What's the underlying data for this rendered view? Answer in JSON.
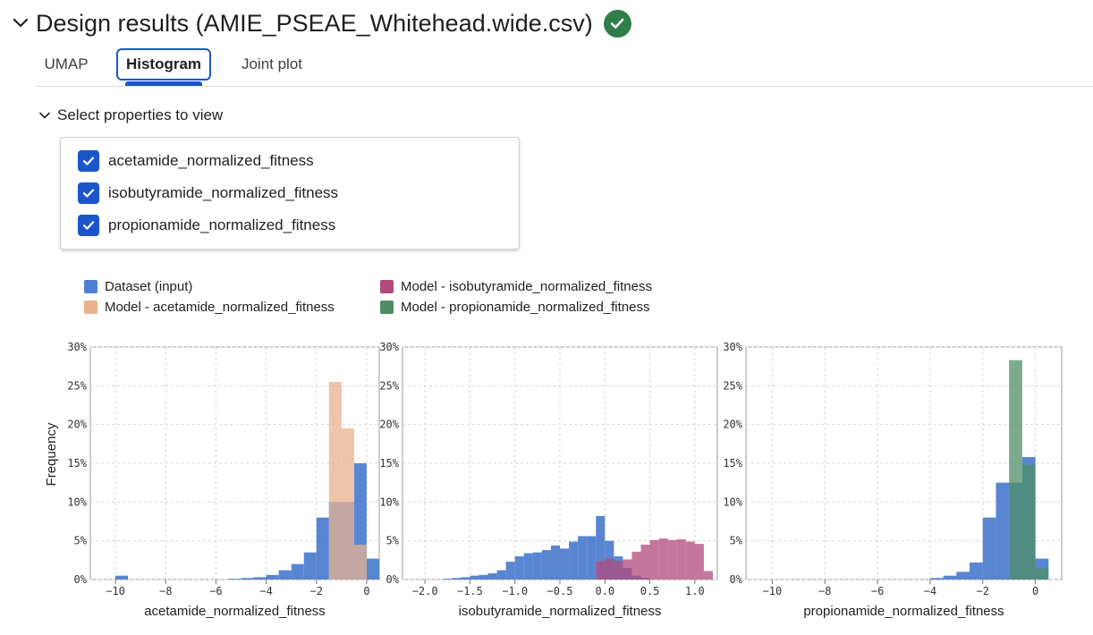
{
  "header": {
    "title": "Design results (AMIE_PSEAE_Whitehead.wide.csv)"
  },
  "tabs": [
    {
      "label": "UMAP"
    },
    {
      "label": "Histogram"
    },
    {
      "label": "Joint plot"
    }
  ],
  "properties": {
    "heading": "Select properties to view",
    "items": [
      {
        "label": "acetamide_normalized_fitness",
        "checked": true
      },
      {
        "label": "isobutyramide_normalized_fitness",
        "checked": true
      },
      {
        "label": "propionamide_normalized_fitness",
        "checked": true
      }
    ]
  },
  "legend": [
    {
      "label": "Dataset (input)",
      "color": "#4f7fd0"
    },
    {
      "label": "Model - acetamide_normalized_fitness",
      "color": "#e8b28f"
    },
    {
      "label": "Model - isobutyramide_normalized_fitness",
      "color": "#b04a7a"
    },
    {
      "label": "Model - propionamide_normalized_fitness",
      "color": "#4f8d66"
    }
  ],
  "chart_data": [
    {
      "type": "bar",
      "xlabel": "acetamide_normalized_fitness",
      "ylabel": "Frequency",
      "xlim": [
        -11,
        0.5
      ],
      "ylim": [
        0,
        30
      ],
      "xticks": [
        "-10",
        "-8",
        "-6",
        "-4",
        "-2",
        "0"
      ],
      "yticks": [
        "0%",
        "5%",
        "10%",
        "15%",
        "20%",
        "25%",
        "30%"
      ],
      "grid": true,
      "series": [
        {
          "name": "Dataset (input)",
          "bins": [
            [
              -10.0,
              -9.5,
              0.5
            ],
            [
              -5.5,
              -5.0,
              0.1
            ],
            [
              -5.0,
              -4.5,
              0.2
            ],
            [
              -4.5,
              -4.0,
              0.3
            ],
            [
              -4.0,
              -3.5,
              0.6
            ],
            [
              -3.5,
              -3.0,
              1.2
            ],
            [
              -3.0,
              -2.5,
              2.0
            ],
            [
              -2.5,
              -2.0,
              3.5
            ],
            [
              -2.0,
              -1.5,
              8.0
            ],
            [
              -1.5,
              -1.0,
              10.0
            ],
            [
              -1.0,
              -0.5,
              10.0
            ],
            [
              -0.5,
              0.0,
              15.0
            ],
            [
              0.0,
              0.5,
              2.7
            ]
          ]
        },
        {
          "name": "Model - acetamide_normalized_fitness",
          "bins": [
            [
              -1.5,
              -1.0,
              25.5
            ],
            [
              -1.0,
              -0.5,
              19.5
            ],
            [
              -0.5,
              0.0,
              4.5
            ]
          ]
        }
      ]
    },
    {
      "type": "bar",
      "xlabel": "isobutyramide_normalized_fitness",
      "ylabel": "",
      "xlim": [
        -2.25,
        1.25
      ],
      "ylim": [
        0,
        30
      ],
      "xticks": [
        "-2.0",
        "-1.5",
        "-1.0",
        "-0.5",
        "0.0",
        "0.5",
        "1.0"
      ],
      "yticks": [
        "0%",
        "5%",
        "10%",
        "15%",
        "20%",
        "25%",
        "30%"
      ],
      "grid": true,
      "series": [
        {
          "name": "Dataset (input)",
          "bins": [
            [
              -1.8,
              -1.7,
              0.1
            ],
            [
              -1.7,
              -1.6,
              0.2
            ],
            [
              -1.6,
              -1.5,
              0.3
            ],
            [
              -1.5,
              -1.4,
              0.5
            ],
            [
              -1.4,
              -1.3,
              0.6
            ],
            [
              -1.3,
              -1.2,
              0.8
            ],
            [
              -1.2,
              -1.1,
              1.2
            ],
            [
              -1.1,
              -1.0,
              2.3
            ],
            [
              -1.0,
              -0.9,
              3.0
            ],
            [
              -0.9,
              -0.8,
              3.4
            ],
            [
              -0.8,
              -0.7,
              3.5
            ],
            [
              -0.7,
              -0.6,
              3.8
            ],
            [
              -0.6,
              -0.5,
              4.4
            ],
            [
              -0.5,
              -0.4,
              4.0
            ],
            [
              -0.4,
              -0.3,
              4.9
            ],
            [
              -0.3,
              -0.2,
              5.6
            ],
            [
              -0.2,
              -0.1,
              5.6
            ],
            [
              -0.1,
              0.0,
              8.2
            ],
            [
              0.0,
              0.1,
              5.0
            ],
            [
              0.1,
              0.2,
              3.0
            ],
            [
              0.2,
              0.3,
              1.5
            ],
            [
              0.3,
              0.4,
              0.5
            ],
            [
              0.4,
              0.5,
              0.2
            ]
          ]
        },
        {
          "name": "Model - isobutyramide_normalized_fitness",
          "bins": [
            [
              -0.1,
              0.0,
              2.4
            ],
            [
              0.0,
              0.1,
              2.7
            ],
            [
              0.1,
              0.2,
              2.4
            ],
            [
              0.2,
              0.3,
              2.6
            ],
            [
              0.3,
              0.4,
              3.6
            ],
            [
              0.4,
              0.5,
              4.5
            ],
            [
              0.5,
              0.6,
              5.1
            ],
            [
              0.6,
              0.7,
              5.3
            ],
            [
              0.7,
              0.8,
              5.1
            ],
            [
              0.8,
              0.9,
              5.2
            ],
            [
              0.9,
              1.0,
              4.9
            ],
            [
              1.0,
              1.1,
              4.6
            ],
            [
              1.1,
              1.2,
              1.1
            ]
          ]
        }
      ]
    },
    {
      "type": "bar",
      "xlabel": "propionamide_normalized_fitness",
      "ylabel": "",
      "xlim": [
        -11,
        1.0
      ],
      "ylim": [
        0,
        30
      ],
      "xticks": [
        "-10",
        "-8",
        "-6",
        "-4",
        "-2",
        "0"
      ],
      "yticks": [
        "0%",
        "5%",
        "10%",
        "15%",
        "20%",
        "25%",
        "30%"
      ],
      "grid": true,
      "series": [
        {
          "name": "Dataset (input)",
          "bins": [
            [
              -4.0,
              -3.5,
              0.2
            ],
            [
              -3.5,
              -3.0,
              0.5
            ],
            [
              -3.0,
              -2.5,
              1.0
            ],
            [
              -2.5,
              -2.0,
              2.2
            ],
            [
              -2.0,
              -1.5,
              8.0
            ],
            [
              -1.5,
              -1.0,
              12.5
            ],
            [
              -1.0,
              -0.5,
              12.5
            ],
            [
              -0.5,
              0.0,
              15.8
            ],
            [
              0.0,
              0.5,
              2.7
            ]
          ]
        },
        {
          "name": "Model - propionamide_normalized_fitness",
          "bins": [
            [
              -1.0,
              -0.5,
              28.3
            ],
            [
              -0.5,
              0.0,
              14.8
            ],
            [
              0.0,
              0.5,
              1.5
            ]
          ]
        }
      ]
    }
  ]
}
